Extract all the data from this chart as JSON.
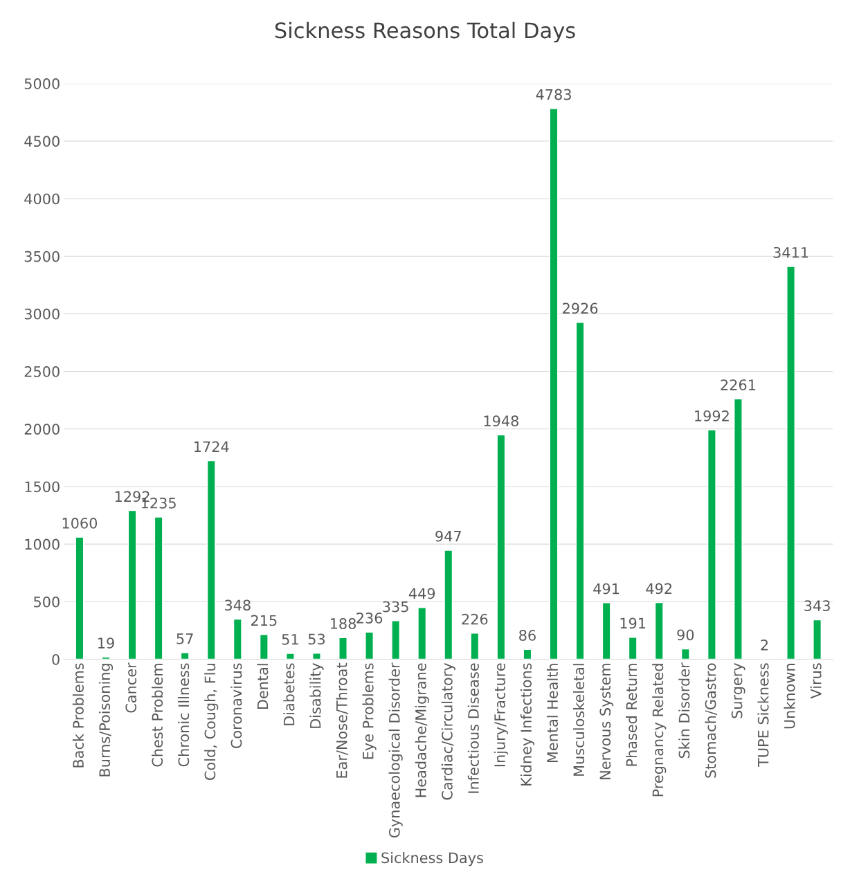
{
  "chart_data": {
    "type": "bar",
    "title": "Sickness Reasons Total Days",
    "categories": [
      "Back Problems",
      "Burns/Poisoning",
      "Cancer",
      "Chest Problem",
      "Chronic Illness",
      "Cold, Cough, Flu",
      "Coronavirus",
      "Dental",
      "Diabetes",
      "Disability",
      "Ear/Nose/Throat",
      "Eye Problems",
      "Gynaecological Disorder",
      "Headache/Migrane",
      "Cardiac/Circulatory",
      "Infectious Disease",
      "Injury/Fracture",
      "Kidney Infections",
      "Mental Health",
      "Musculoskeletal",
      "Nervous System",
      "Phased Return",
      "Pregnancy Related",
      "Skin Disorder",
      "Stomach/Gastro",
      "Surgery",
      "TUPE Sickness",
      "Unknown",
      "Virus"
    ],
    "series": [
      {
        "name": "Sickness Days",
        "color": "#00b050",
        "values": [
          1060,
          19,
          1292,
          1235,
          57,
          1724,
          348,
          215,
          51,
          53,
          188,
          236,
          335,
          449,
          947,
          226,
          1948,
          86,
          4783,
          2926,
          491,
          191,
          492,
          90,
          1992,
          2261,
          2,
          3411,
          343
        ]
      }
    ],
    "ylim": [
      0,
      5000
    ],
    "yticks": [
      0,
      500,
      1000,
      1500,
      2000,
      2500,
      3000,
      3500,
      4000,
      4500,
      5000
    ],
    "grid": "y",
    "legend": "bottom",
    "data_labels": true
  }
}
